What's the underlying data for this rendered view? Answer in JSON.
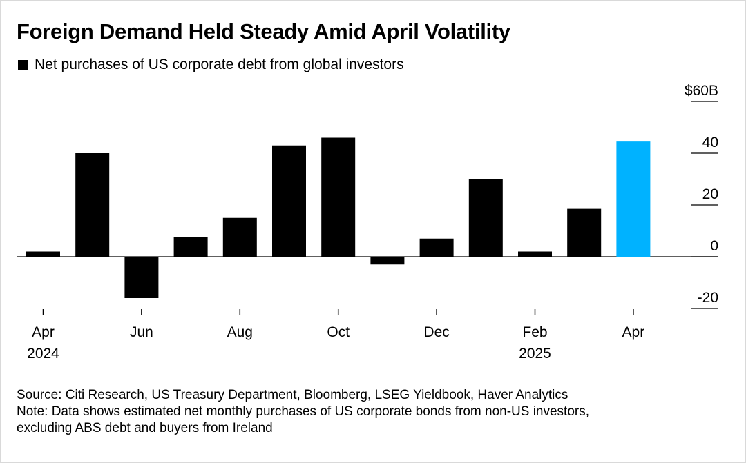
{
  "title": "Foreign Demand Held Steady Amid April Volatility",
  "legend": {
    "label": "Net purchases of US corporate debt from global investors",
    "color": "#000000"
  },
  "colors": {
    "bar": "#000000",
    "highlight": "#00b2ff",
    "axis": "#000000"
  },
  "source": "Source: Citi Research, US Treasury Department, Bloomberg, LSEG Yieldbook, Haver Analytics",
  "note_line1": "Note: Data shows estimated net monthly purchases of US corporate bonds from non-US investors,",
  "note_line2": "excluding ABS debt and buyers from Ireland",
  "chart_data": {
    "type": "bar",
    "categories": [
      "2024-04",
      "2024-05",
      "2024-06",
      "2024-07",
      "2024-08",
      "2024-09",
      "2024-10",
      "2024-11",
      "2024-12",
      "2025-01",
      "2025-02",
      "2025-03",
      "2025-04"
    ],
    "values": [
      2,
      40,
      -16,
      7.5,
      15,
      43,
      46,
      -3,
      7,
      30,
      2,
      18.5,
      44.5
    ],
    "highlight_index": 12,
    "ylim": [
      -20,
      60
    ],
    "yticks": [
      {
        "value": 60,
        "label": "$60B"
      },
      {
        "value": 40,
        "label": "40"
      },
      {
        "value": 20,
        "label": "20"
      },
      {
        "value": 0,
        "label": "0"
      },
      {
        "value": -20,
        "label": "-20"
      }
    ],
    "xticks": [
      {
        "index": 0,
        "label": "Apr",
        "sublabel": "2024"
      },
      {
        "index": 2,
        "label": "Jun",
        "sublabel": ""
      },
      {
        "index": 4,
        "label": "Aug",
        "sublabel": ""
      },
      {
        "index": 6,
        "label": "Oct",
        "sublabel": ""
      },
      {
        "index": 8,
        "label": "Dec",
        "sublabel": ""
      },
      {
        "index": 10,
        "label": "Feb",
        "sublabel": "2025"
      },
      {
        "index": 12,
        "label": "Apr",
        "sublabel": ""
      }
    ],
    "grid": false,
    "legend_position": "top-left"
  }
}
